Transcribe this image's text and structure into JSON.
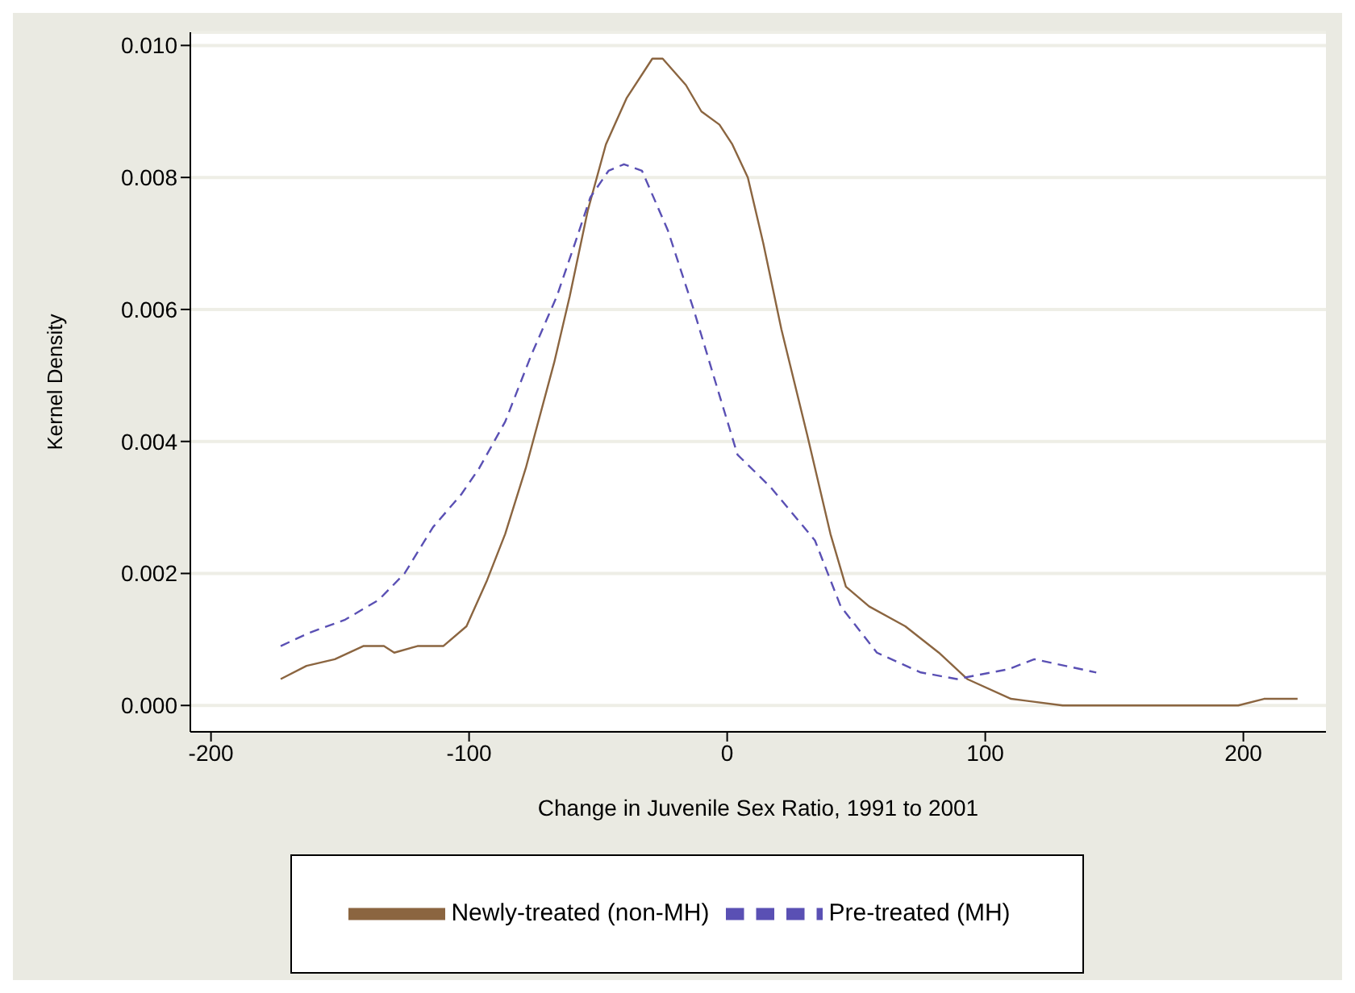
{
  "chart_data": {
    "type": "line",
    "xlabel": "Change in Juvenile Sex Ratio, 1991 to 2001",
    "ylabel": "Kernel Density",
    "xlim": [
      -208,
      232
    ],
    "xticks": [
      -200,
      -100,
      0,
      100,
      200
    ],
    "ylim": [
      -0.0004,
      0.0102
    ],
    "yticks": [
      {
        "value": 0,
        "label": "0.000"
      },
      {
        "value": 0.002,
        "label": "0.002"
      },
      {
        "value": 0.004,
        "label": "0.004"
      },
      {
        "value": 0.006,
        "label": "0.006"
      },
      {
        "value": 0.008,
        "label": "0.008"
      },
      {
        "value": 0.01,
        "label": "0.010"
      }
    ],
    "grid": "y",
    "legend": "bottom",
    "marker": "none",
    "series": [
      {
        "name": "Newly-treated (non-MH)",
        "color": "#8b6540",
        "line_style": "solid",
        "x": [
          -173,
          -163,
          -152,
          -141,
          -133,
          -129,
          -120,
          -110,
          -101,
          -93,
          -86,
          -78,
          -67,
          -61,
          -54,
          -47,
          -39,
          -29,
          -25,
          -16,
          -10,
          -3,
          2,
          8,
          14,
          21,
          31,
          40,
          46,
          55,
          69,
          82,
          93,
          110,
          130,
          198,
          208,
          221
        ],
        "values": [
          0.0004,
          0.0006,
          0.0007,
          0.0009,
          0.0009,
          0.0008,
          0.0009,
          0.0009,
          0.0012,
          0.0019,
          0.0026,
          0.0036,
          0.0052,
          0.0062,
          0.0075,
          0.0085,
          0.0092,
          0.0098,
          0.0098,
          0.0094,
          0.009,
          0.0088,
          0.0085,
          0.008,
          0.007,
          0.0057,
          0.0041,
          0.0026,
          0.0018,
          0.0015,
          0.0012,
          0.0008,
          0.0004,
          0.0001,
          0,
          0,
          0.0001,
          0.0001
        ]
      },
      {
        "name": "Pre-treated (MH)",
        "color": "#5a50b4",
        "line_style": "dashed",
        "x": [
          -173,
          -162,
          -148,
          -135,
          -125,
          -114,
          -103,
          -96,
          -86,
          -76,
          -66,
          -59,
          -53,
          -46,
          -40,
          -33,
          -23,
          -13,
          -3,
          4,
          17,
          34,
          44,
          58,
          75,
          89,
          109,
          119,
          143
        ],
        "values": [
          0.0009,
          0.0011,
          0.0013,
          0.0016,
          0.002,
          0.0027,
          0.0032,
          0.0036,
          0.0043,
          0.0053,
          0.0062,
          0.007,
          0.0077,
          0.0081,
          0.0082,
          0.0081,
          0.0072,
          0.006,
          0.0047,
          0.0038,
          0.0033,
          0.0025,
          0.0015,
          0.0008,
          0.0005,
          0.0004,
          0.00055,
          0.0007,
          0.0005
        ]
      }
    ]
  }
}
